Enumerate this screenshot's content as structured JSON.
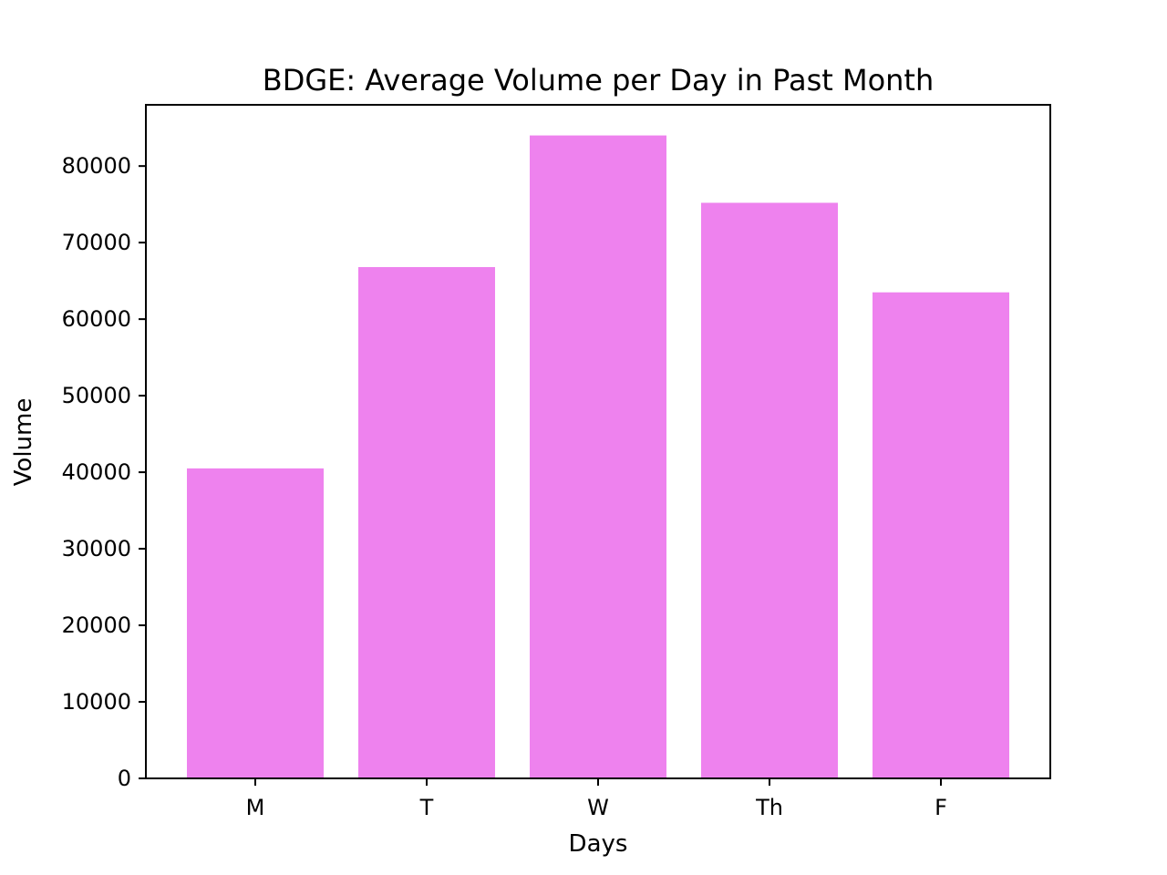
{
  "chart_data": {
    "type": "bar",
    "title": "BDGE: Average Volume per Day in Past Month",
    "xlabel": "Days",
    "ylabel": "Volume",
    "categories": [
      "M",
      "T",
      "W",
      "Th",
      "F"
    ],
    "values": [
      40500,
      66800,
      84000,
      75200,
      63500
    ],
    "ylim": [
      0,
      88000
    ],
    "yticks": [
      0,
      10000,
      20000,
      30000,
      40000,
      50000,
      60000,
      70000,
      80000
    ],
    "bar_color": "#ee82ee",
    "grid": false,
    "legend": "none"
  }
}
